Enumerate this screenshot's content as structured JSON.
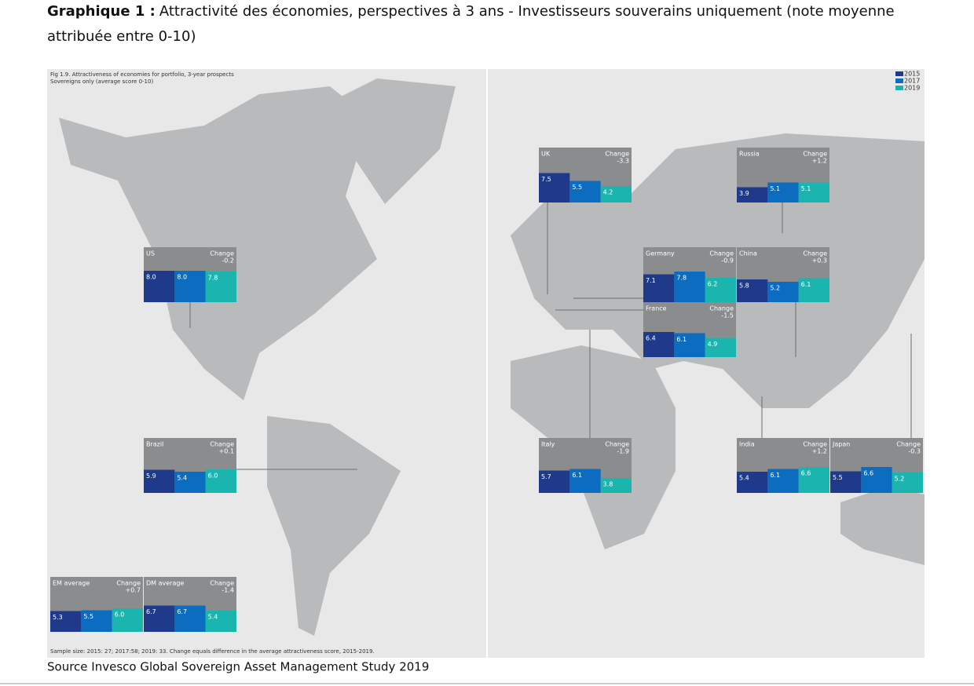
{
  "header": {
    "title_bold": "Graphique 1 :",
    "title": "Attractivité des économies, perspectives à 3 ans - Investisseurs souverains uniquement (note moyenne",
    "title_line2": "attribuée entre 0-10)"
  },
  "figure": {
    "title": "Fig 1.9. Attractiveness of economies for portfolio, 3-year prospects",
    "subtitle": "Sovereigns only (average score 0-10)",
    "note": "Sample size: 2015: 27; 2017:58; 2019: 33. Change equals difference in the average attractiveness score, 2015-2019.",
    "change_label": "Change",
    "legend": [
      {
        "name": "2015",
        "color": "#1f3a8a"
      },
      {
        "name": "2017",
        "color": "#0b6cc0"
      },
      {
        "name": "2019",
        "color": "#1bb5b0"
      }
    ]
  },
  "source": "Source Invesco Global Sovereign Asset Management Study 2019",
  "chart_data": [
    {
      "type": "bar",
      "title": "UK",
      "change": {
        "value": -3.3,
        "label": "-3.3"
      },
      "values": [
        7.5,
        5.5,
        4.2
      ],
      "value_labels": [
        "7.5",
        "5.5",
        "4.2"
      ]
    },
    {
      "type": "bar",
      "title": "Russia",
      "change": {
        "value": 1.2,
        "label": "+1.2"
      },
      "values": [
        3.9,
        5.1,
        5.1
      ],
      "value_labels": [
        "3.9",
        "5.1",
        "5.1"
      ]
    },
    {
      "type": "bar",
      "title": "US",
      "change": {
        "value": -0.2,
        "label": "-0.2"
      },
      "values": [
        8.0,
        8.0,
        7.8
      ],
      "value_labels": [
        "8.0",
        "8.0",
        "7.8"
      ]
    },
    {
      "type": "bar",
      "title": "Germany",
      "change": {
        "value": -0.9,
        "label": "-0.9"
      },
      "values": [
        7.1,
        7.8,
        6.2
      ],
      "value_labels": [
        "7.1",
        "7.8",
        "6.2"
      ]
    },
    {
      "type": "bar",
      "title": "China",
      "change": {
        "value": 0.3,
        "label": "+0.3"
      },
      "values": [
        5.8,
        5.2,
        6.1
      ],
      "value_labels": [
        "5.8",
        "5.2",
        "6.1"
      ]
    },
    {
      "type": "bar",
      "title": "France",
      "change": {
        "value": -1.5,
        "label": "-1.5"
      },
      "values": [
        6.4,
        6.1,
        4.9
      ],
      "value_labels": [
        "6.4",
        "6.1",
        "4.9"
      ]
    },
    {
      "type": "bar",
      "title": "Brazil",
      "change": {
        "value": 0.1,
        "label": "+0.1"
      },
      "values": [
        5.9,
        5.4,
        6.0
      ],
      "value_labels": [
        "5.9",
        "5.4",
        "6.0"
      ]
    },
    {
      "type": "bar",
      "title": "Italy",
      "change": {
        "value": -1.9,
        "label": "-1.9"
      },
      "values": [
        5.7,
        6.1,
        3.8
      ],
      "value_labels": [
        "5.7",
        "6.1",
        "3.8"
      ]
    },
    {
      "type": "bar",
      "title": "India",
      "change": {
        "value": 1.2,
        "label": "+1.2"
      },
      "values": [
        5.4,
        6.1,
        6.6
      ],
      "value_labels": [
        "5.4",
        "6.1",
        "6.6"
      ]
    },
    {
      "type": "bar",
      "title": "Japan",
      "change": {
        "value": -0.3,
        "label": "-0.3"
      },
      "values": [
        5.5,
        6.6,
        5.2
      ],
      "value_labels": [
        "5.5",
        "6.6",
        "5.2"
      ]
    },
    {
      "type": "bar",
      "title": "EM average",
      "change": {
        "value": 0.7,
        "label": "+0.7"
      },
      "values": [
        5.3,
        5.5,
        6.0
      ],
      "value_labels": [
        "5.3",
        "5.5",
        "6.0"
      ]
    },
    {
      "type": "bar",
      "title": "DM average",
      "change": {
        "value": -1.4,
        "label": "-1.4"
      },
      "values": [
        6.7,
        6.7,
        5.4
      ],
      "value_labels": [
        "6.7",
        "6.7",
        "5.4"
      ]
    }
  ]
}
